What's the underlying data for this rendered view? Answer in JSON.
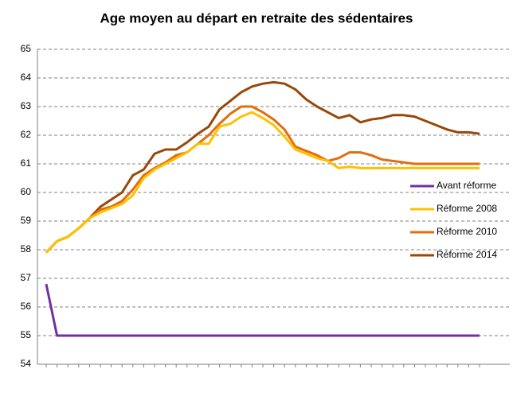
{
  "chart_data": {
    "type": "line",
    "title": "Age moyen au départ en retraite des sédentaires",
    "categories": [
      null,
      null,
      null,
      null,
      null,
      null,
      null,
      null,
      null,
      null,
      null,
      null,
      null,
      null,
      null,
      null,
      null,
      null,
      null,
      null,
      null,
      null,
      null,
      null,
      null,
      null,
      null,
      null,
      null,
      null,
      null,
      null,
      null,
      null,
      null,
      null,
      null,
      null,
      null,
      null,
      null
    ],
    "series": [
      {
        "name": "Avant réforme",
        "color": "#7030a0",
        "values": [
          56.8,
          55,
          55,
          55,
          55,
          55,
          55,
          55,
          55,
          55,
          55,
          55,
          55,
          55,
          55,
          55,
          55,
          55,
          55,
          55,
          55,
          55,
          55,
          55,
          55,
          55,
          55,
          55,
          55,
          55,
          55,
          55,
          55,
          55,
          55,
          55,
          55,
          55,
          55,
          55,
          55
        ]
      },
      {
        "name": "Réforme 2008",
        "color": "#ffc000",
        "values": [
          57.9,
          58.3,
          58.45,
          58.75,
          59.1,
          59.3,
          59.45,
          59.6,
          59.9,
          60.5,
          60.8,
          61.0,
          61.2,
          61.4,
          61.7,
          61.7,
          62.3,
          62.4,
          62.65,
          62.8,
          62.6,
          62.35,
          61.95,
          61.5,
          61.35,
          61.2,
          61.1,
          60.85,
          60.9,
          60.85,
          60.85,
          60.85,
          60.85,
          60.85,
          60.85,
          60.85,
          60.85,
          60.85,
          60.85,
          60.85,
          60.85
        ]
      },
      {
        "name": "Réforme 2010",
        "color": "#e46c0a",
        "values": [
          57.9,
          58.3,
          58.45,
          58.75,
          59.1,
          59.4,
          59.5,
          59.7,
          60.1,
          60.6,
          60.85,
          61.05,
          61.3,
          61.4,
          61.7,
          62.0,
          62.4,
          62.75,
          63.0,
          63.0,
          62.8,
          62.55,
          62.2,
          61.6,
          61.45,
          61.3,
          61.1,
          61.2,
          61.4,
          61.4,
          61.3,
          61.15,
          61.1,
          61.05,
          61.0,
          61.0,
          61.0,
          61.0,
          61.0,
          61.0,
          61.0
        ]
      },
      {
        "name": "Réforme 2014",
        "color": "#984807",
        "values": [
          57.9,
          58.3,
          58.45,
          58.75,
          59.1,
          59.5,
          59.75,
          60.0,
          60.6,
          60.8,
          61.35,
          61.5,
          61.5,
          61.75,
          62.05,
          62.3,
          62.9,
          63.2,
          63.5,
          63.7,
          63.8,
          63.85,
          63.8,
          63.6,
          63.25,
          63.0,
          62.8,
          62.6,
          62.7,
          62.45,
          62.55,
          62.6,
          62.7,
          62.7,
          62.65,
          62.5,
          62.35,
          62.2,
          62.1,
          62.1,
          62.05
        ]
      }
    ],
    "ylim": [
      54,
      65
    ],
    "yticks": [
      54,
      55,
      56,
      57,
      58,
      59,
      60,
      61,
      62,
      63,
      64,
      65
    ],
    "grid": true
  }
}
